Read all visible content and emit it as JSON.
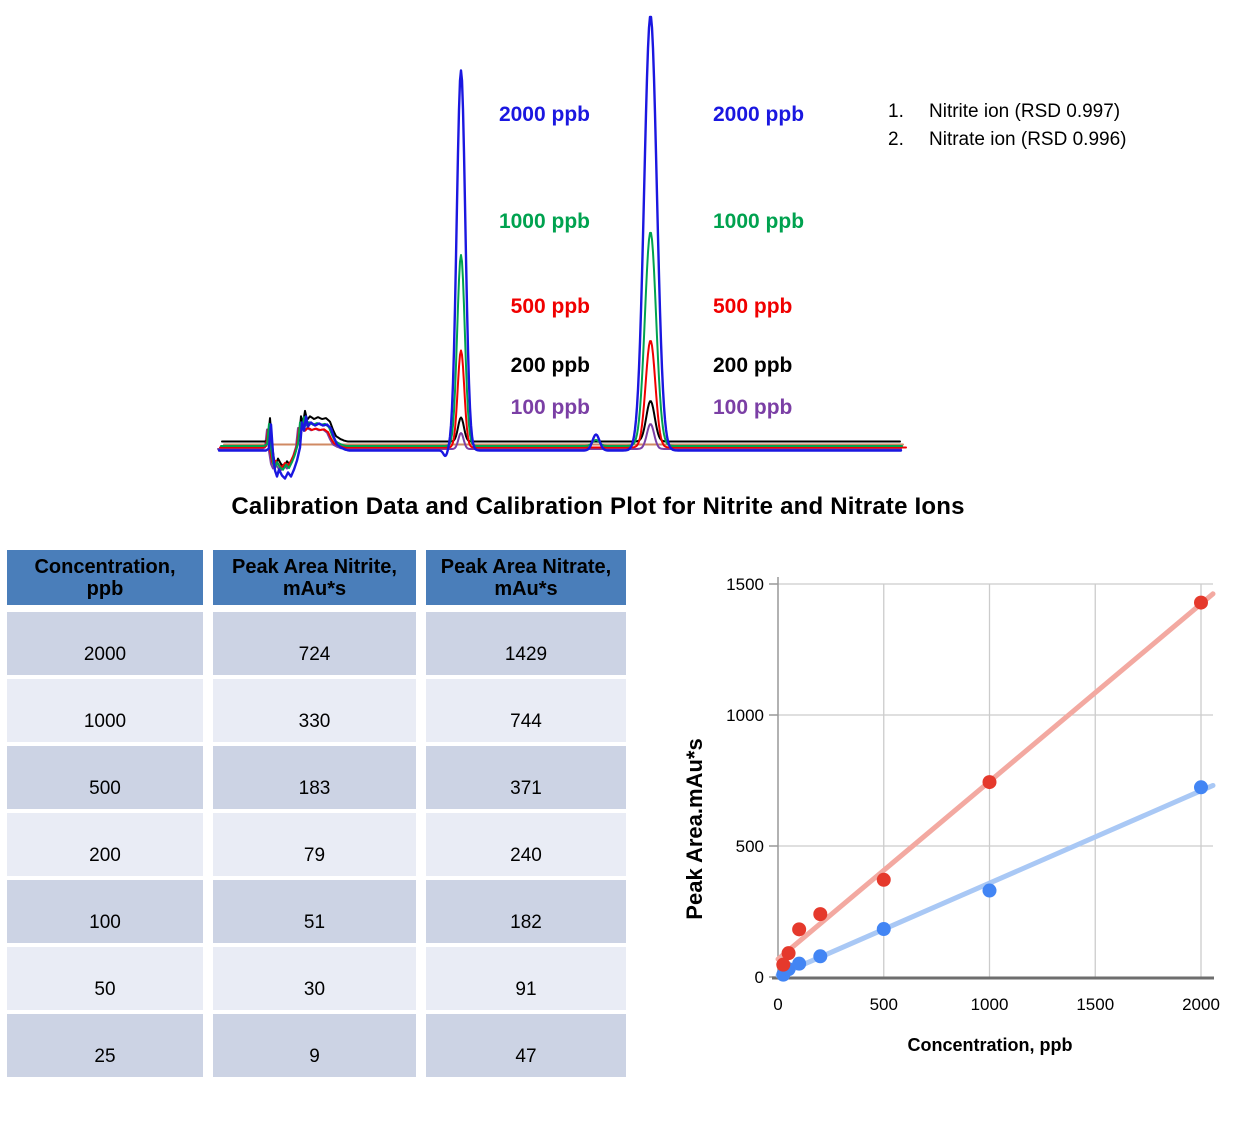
{
  "section_title": "Calibration Data and Calibration Plot for Nitrite and Nitrate Ions",
  "chromatogram": {
    "concentrations": [
      {
        "label": "2000 ppb",
        "color": "#1A17E0"
      },
      {
        "label": "1000 ppb",
        "color": "#00A24F"
      },
      {
        "label": "500 ppb",
        "color": "#F00000"
      },
      {
        "label": "200 ppb",
        "color": "#000000"
      },
      {
        "label": "100 ppb",
        "color": "#7B3FA5"
      }
    ],
    "legend": [
      {
        "index": "1.",
        "label": "Nitrite ion (RSD 0.997)"
      },
      {
        "index": "2.",
        "label": "Nitrate ion (RSD 0.996)"
      }
    ]
  },
  "table": {
    "header_bg": "#4A7EBA",
    "row_dark": "#CCD3E4",
    "row_light": "#E9ECF5",
    "columns": [
      [
        "Concentration,",
        "ppb"
      ],
      [
        "Peak Area Nitrite,",
        "mAu*s"
      ],
      [
        "Peak Area Nitrate,",
        "mAu*s"
      ]
    ],
    "rows": [
      [
        "2000",
        "724",
        "1429"
      ],
      [
        "1000",
        "330",
        "744"
      ],
      [
        "500",
        "183",
        "371"
      ],
      [
        "200",
        "79",
        "240"
      ],
      [
        "100",
        "51",
        "182"
      ],
      [
        "50",
        "30",
        "91"
      ],
      [
        "25",
        "9",
        "47"
      ]
    ]
  },
  "chart_data": [
    {
      "type": "line",
      "series_labels": [
        "2000 ppb",
        "1000 ppb",
        "500 ppb",
        "200 ppb",
        "100 ppb"
      ],
      "peaks": [
        "Nitrite ion (RSD 0.997)",
        "Nitrate ion (RSD 0.996)"
      ]
    },
    {
      "type": "scatter",
      "x": [
        25,
        50,
        100,
        200,
        500,
        1000,
        2000
      ],
      "series": [
        {
          "name": "Peak Area Nitrite, mAu*s",
          "point_color": "#4285F4",
          "trend_color": "#A9C8F5",
          "values": [
            9,
            30,
            51,
            79,
            183,
            330,
            724
          ]
        },
        {
          "name": "Peak Area Nitrate, mAu*s",
          "point_color": "#E5392C",
          "trend_color": "#F3A9A1",
          "values": [
            47,
            91,
            182,
            240,
            371,
            744,
            1429
          ]
        }
      ],
      "xlabel": "Concentration, ppb",
      "ylabel": "Peak Area.mAu*s",
      "xticks": [
        0,
        500,
        1000,
        1500,
        2000
      ],
      "yticks": [
        0,
        500,
        1000,
        1500
      ],
      "xlim": [
        0,
        2055
      ],
      "ylim": [
        0,
        1550
      ],
      "grid": true,
      "trendlines": true,
      "grid_color": "#CCCCCC",
      "axis_color": "#6E6E6E"
    }
  ]
}
